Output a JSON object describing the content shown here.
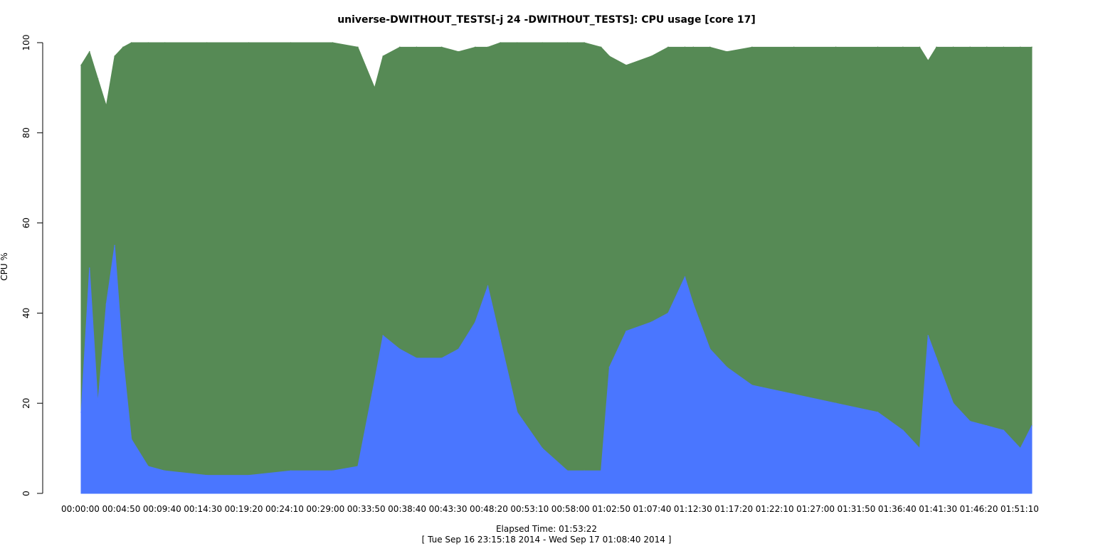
{
  "chart_data": {
    "type": "area",
    "title": "universe-DWITHOUT_TESTS[-j 24  -DWITHOUT_TESTS]: CPU usage [core 17]",
    "xlabel": "Elapsed Time: 01:53:22",
    "xlabel_sub": "[ Tue Sep 16 23:15:18 2014 - Wed Sep 17 01:08:40 2014 ]",
    "ylabel": "CPU %",
    "ylim": [
      0,
      100
    ],
    "xlim": [
      "00:00:00",
      "01:53:22"
    ],
    "yticks": [
      0,
      20,
      40,
      60,
      80,
      100
    ],
    "xticks": [
      "00:00:00",
      "00:04:50",
      "00:09:40",
      "00:14:30",
      "00:19:20",
      "00:24:10",
      "00:29:00",
      "00:33:50",
      "00:38:40",
      "00:43:30",
      "00:48:20",
      "00:53:10",
      "00:58:00",
      "01:02:50",
      "01:07:40",
      "01:12:30",
      "01:17:20",
      "01:22:10",
      "01:27:00",
      "01:31:50",
      "01:36:40",
      "01:41:30",
      "01:46:20",
      "01:51:10"
    ],
    "grid": false,
    "legend": "none",
    "colors": {
      "lower": "#4a76ff",
      "upper": "#568a55"
    },
    "x": [
      "00:00:00",
      "00:01:00",
      "00:02:00",
      "00:03:00",
      "00:04:00",
      "00:05:00",
      "00:06:00",
      "00:08:00",
      "00:10:00",
      "00:15:00",
      "00:20:00",
      "00:25:00",
      "00:30:00",
      "00:33:00",
      "00:35:00",
      "00:36:00",
      "00:38:00",
      "00:40:00",
      "00:43:00",
      "00:45:00",
      "00:47:00",
      "00:48:30",
      "00:50:00",
      "00:52:00",
      "00:55:00",
      "00:58:00",
      "01:00:00",
      "01:02:00",
      "01:03:00",
      "01:05:00",
      "01:08:00",
      "01:10:00",
      "01:12:00",
      "01:13:00",
      "01:15:00",
      "01:17:00",
      "01:20:00",
      "01:25:00",
      "01:30:00",
      "01:35:00",
      "01:38:00",
      "01:40:00",
      "01:41:00",
      "01:42:00",
      "01:44:00",
      "01:46:00",
      "01:48:00",
      "01:50:00",
      "01:52:00",
      "01:53:22"
    ],
    "series": [
      {
        "values": [
          18,
          50,
          20,
          42,
          55,
          30,
          12,
          6,
          5,
          4,
          4,
          5,
          5,
          6,
          25,
          35,
          32,
          30,
          30,
          32,
          38,
          46,
          34,
          18,
          10,
          5,
          5,
          5,
          28,
          36,
          38,
          40,
          48,
          42,
          32,
          28,
          24,
          22,
          20,
          18,
          14,
          10,
          35,
          30,
          20,
          16,
          15,
          14,
          10,
          15
        ]
      },
      {
        "values": [
          95,
          98,
          92,
          86,
          97,
          99,
          100,
          100,
          100,
          100,
          100,
          100,
          100,
          99,
          90,
          97,
          99,
          99,
          99,
          98,
          99,
          99,
          100,
          100,
          100,
          100,
          100,
          99,
          97,
          95,
          97,
          99,
          99,
          99,
          99,
          98,
          99,
          99,
          99,
          99,
          99,
          99,
          96,
          99,
          99,
          99,
          99,
          99,
          99,
          99
        ]
      }
    ]
  }
}
